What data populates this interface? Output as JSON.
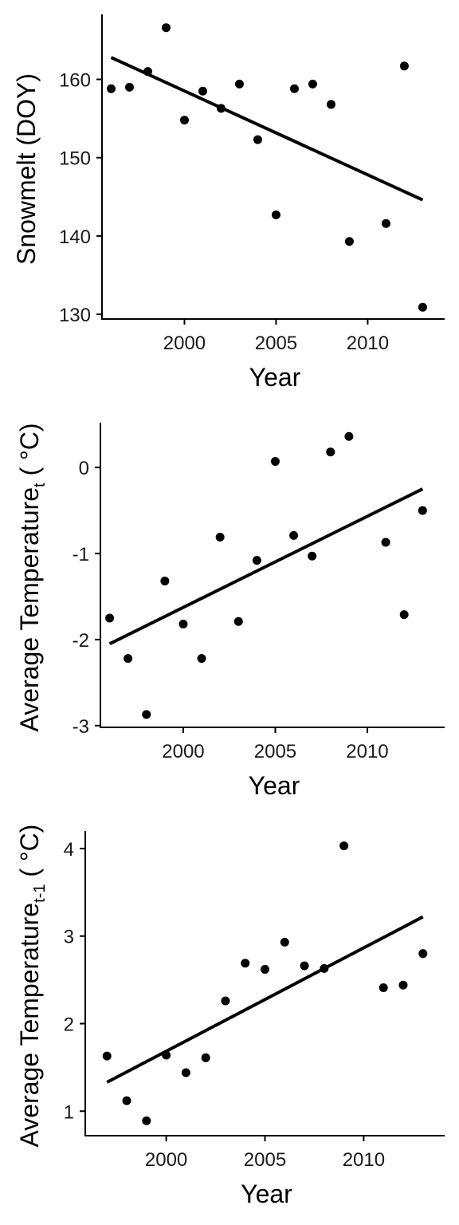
{
  "chart_data": [
    {
      "type": "scatter",
      "xlabel": "Year",
      "ylabel": "Snowmelt (DOY)",
      "ylabel_sub": "",
      "ylabel_suffix": "",
      "x_ticks": [
        2000,
        2005,
        2010
      ],
      "y_ticks": [
        130,
        140,
        150,
        160
      ],
      "xlim": [
        1995.5,
        2014.2
      ],
      "ylim": [
        129.4,
        168.3
      ],
      "series": [
        {
          "points": [
            [
              1996,
              158.8
            ],
            [
              1997,
              159.0
            ],
            [
              1998,
              161.0
            ],
            [
              1999,
              166.6
            ],
            [
              2000,
              154.8
            ],
            [
              2001,
              158.5
            ],
            [
              2002,
              156.3
            ],
            [
              2003,
              159.4
            ],
            [
              2004,
              152.3
            ],
            [
              2005,
              142.7
            ],
            [
              2006,
              158.8
            ],
            [
              2007,
              159.4
            ],
            [
              2008,
              156.8
            ],
            [
              2009,
              139.3
            ],
            [
              2011,
              141.6
            ],
            [
              2012,
              161.7
            ],
            [
              2013,
              130.9
            ]
          ],
          "trend": [
            [
              1996,
              162.8
            ],
            [
              2013,
              144.6
            ]
          ]
        }
      ]
    },
    {
      "type": "scatter",
      "xlabel": "Year",
      "ylabel": "Average Temperature",
      "ylabel_sub": "t",
      "ylabel_suffix": " ( °C)",
      "x_ticks": [
        2000,
        2005,
        2010
      ],
      "y_ticks": [
        -3,
        -2,
        -1,
        0
      ],
      "y_tick_labels": [
        "-3",
        "-2",
        "-1",
        "0"
      ],
      "xlim": [
        1995.5,
        2014.2
      ],
      "ylim": [
        -3.02,
        0.52
      ],
      "series": [
        {
          "points": [
            [
              1996,
              -1.75
            ],
            [
              1997,
              -2.22
            ],
            [
              1998,
              -2.87
            ],
            [
              1999,
              -1.32
            ],
            [
              2000,
              -1.82
            ],
            [
              2001,
              -2.22
            ],
            [
              2002,
              -0.81
            ],
            [
              2003,
              -1.79
            ],
            [
              2004,
              -1.08
            ],
            [
              2005,
              0.07
            ],
            [
              2006,
              -0.79
            ],
            [
              2007,
              -1.03
            ],
            [
              2008,
              0.18
            ],
            [
              2009,
              0.36
            ],
            [
              2011,
              -0.87
            ],
            [
              2012,
              -1.71
            ],
            [
              2013,
              -0.5
            ]
          ],
          "trend": [
            [
              1996,
              -2.05
            ],
            [
              2013,
              -0.25
            ]
          ]
        }
      ]
    },
    {
      "type": "scatter",
      "xlabel": "Year",
      "ylabel": "Average Temperature",
      "ylabel_sub": "t-1",
      "ylabel_suffix": " ( °C)",
      "x_ticks": [
        2000,
        2005,
        2010
      ],
      "y_ticks": [
        1,
        2,
        3,
        4
      ],
      "xlim": [
        1995.9,
        2014.1
      ],
      "ylim": [
        0.72,
        4.2
      ],
      "series": [
        {
          "points": [
            [
              1997,
              1.63
            ],
            [
              1998,
              1.12
            ],
            [
              1999,
              0.89
            ],
            [
              2000,
              1.64
            ],
            [
              2001,
              1.44
            ],
            [
              2002,
              1.61
            ],
            [
              2003,
              2.26
            ],
            [
              2004,
              2.69
            ],
            [
              2005,
              2.62
            ],
            [
              2006,
              2.93
            ],
            [
              2007,
              2.66
            ],
            [
              2008,
              2.63
            ],
            [
              2009,
              4.03
            ],
            [
              2011,
              2.41
            ],
            [
              2012,
              2.44
            ],
            [
              2013,
              2.8
            ]
          ],
          "trend": [
            [
              1997,
              1.33
            ],
            [
              2013,
              3.22
            ]
          ]
        }
      ]
    }
  ]
}
